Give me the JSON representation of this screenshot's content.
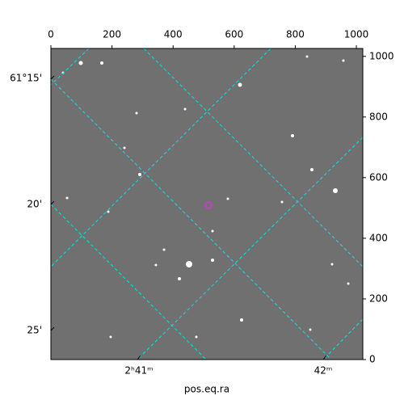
{
  "chart_data": {
    "type": "image",
    "x_label": "pos.eq.ra",
    "xlim": [
      0,
      1021
    ],
    "ylim": [
      0,
      1026
    ],
    "xticks": [
      0,
      200,
      400,
      600,
      800,
      1000
    ],
    "yticks": [
      0,
      200,
      400,
      600,
      800,
      1000
    ],
    "ra_tick_labels": [
      "2ʰ41ᵐ",
      "42ᵐ"
    ],
    "dec_tick_labels": [
      "61°15'",
      "20'",
      "25'"
    ]
  }
}
